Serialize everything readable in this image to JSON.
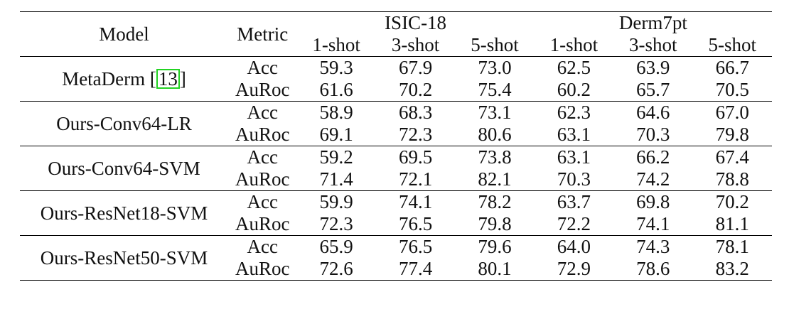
{
  "table": {
    "header": {
      "model_label": "Model",
      "metric_label": "Metric",
      "group1": "ISIC-18",
      "group2": "Derm7pt",
      "shots": [
        "1-shot",
        "3-shot",
        "5-shot",
        "1-shot",
        "3-shot",
        "5-shot"
      ]
    },
    "rows": [
      {
        "model": "MetaDerm [",
        "citation": "13",
        "model_suffix": "]",
        "metrics": [
          {
            "name": "Acc",
            "values": [
              "59.3",
              "67.9",
              "73.0",
              "62.5",
              "63.9",
              "66.7"
            ]
          },
          {
            "name": "AuRoc",
            "values": [
              "61.6",
              "70.2",
              "75.4",
              "60.2",
              "65.7",
              "70.5"
            ]
          }
        ]
      },
      {
        "model": "Ours-Conv64-LR",
        "metrics": [
          {
            "name": "Acc",
            "values": [
              "58.9",
              "68.3",
              "73.1",
              "62.3",
              "64.6",
              "67.0"
            ]
          },
          {
            "name": "AuRoc",
            "values": [
              "69.1",
              "72.3",
              "80.6",
              "63.1",
              "70.3",
              "79.8"
            ]
          }
        ]
      },
      {
        "model": "Ours-Conv64-SVM",
        "metrics": [
          {
            "name": "Acc",
            "values": [
              "59.2",
              "69.5",
              "73.8",
              "63.1",
              "66.2",
              "67.4"
            ]
          },
          {
            "name": "AuRoc",
            "values": [
              "71.4",
              "72.1",
              "82.1",
              "70.3",
              "74.2",
              "78.8"
            ]
          }
        ]
      },
      {
        "model": "Ours-ResNet18-SVM",
        "metrics": [
          {
            "name": "Acc",
            "values": [
              "59.9",
              "74.1",
              "78.2",
              "63.7",
              "69.8",
              "70.2"
            ]
          },
          {
            "name": "AuRoc",
            "values": [
              "72.3",
              "76.5",
              "79.8",
              "72.2",
              "74.1",
              "81.1"
            ]
          }
        ]
      },
      {
        "model": "Ours-ResNet50-SVM",
        "metrics": [
          {
            "name": "Acc",
            "values": [
              "65.9",
              "76.5",
              "79.6",
              "64.0",
              "74.3",
              "78.1"
            ]
          },
          {
            "name": "AuRoc",
            "values": [
              "72.6",
              "77.4",
              "80.1",
              "72.9",
              "78.6",
              "83.2"
            ]
          }
        ]
      }
    ],
    "colors": {
      "text": "#111111",
      "rule": "#000000",
      "citation_box": "#23d323"
    }
  }
}
